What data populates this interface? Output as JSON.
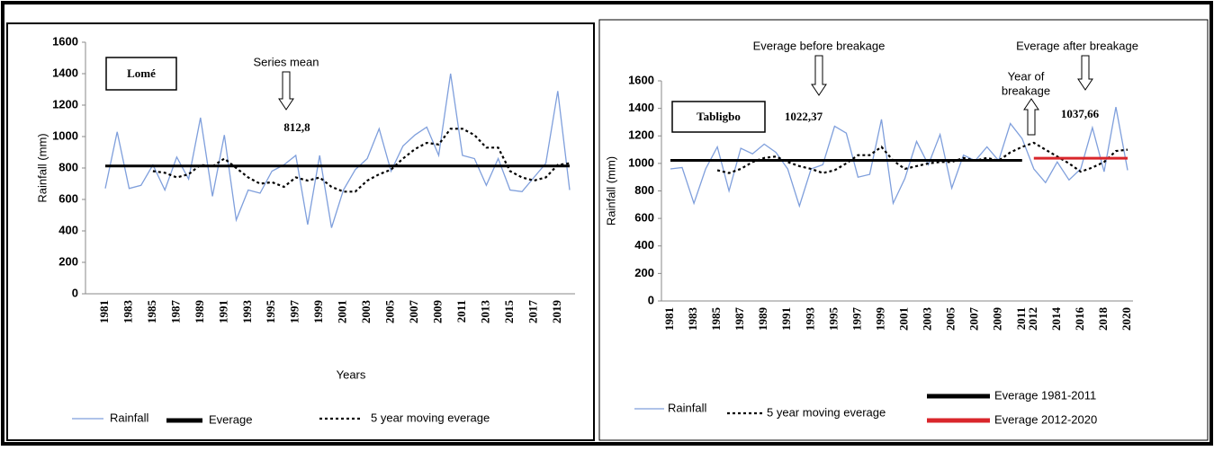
{
  "chart_data": [
    {
      "type": "line",
      "title": "Lomé",
      "x_label": "Years",
      "y_label": "Rainfall (mm)",
      "categories": [
        "1981",
        null,
        "1983",
        null,
        "1985",
        null,
        "1987",
        null,
        "1989",
        null,
        "1991",
        null,
        "1993",
        null,
        "1995",
        null,
        "1997",
        null,
        "1999",
        null,
        "2001",
        null,
        "2003",
        null,
        "2005",
        null,
        "2007",
        null,
        "2009",
        null,
        "2011",
        null,
        "2013",
        null,
        "2015",
        null,
        "2017",
        null,
        "2019",
        null
      ],
      "ylim": [
        0,
        1600
      ],
      "yticks": [
        0,
        200,
        400,
        600,
        800,
        1000,
        1200,
        1400,
        1600
      ],
      "series": [
        {
          "name": "Rainfall",
          "color": "#7f9fdc",
          "style": "solid",
          "values": [
            670,
            1030,
            670,
            690,
            820,
            660,
            870,
            730,
            1120,
            620,
            1010,
            470,
            660,
            640,
            780,
            820,
            880,
            440,
            880,
            420,
            660,
            790,
            860,
            1050,
            780,
            940,
            1010,
            1060,
            880,
            1400,
            880,
            860,
            690,
            860,
            660,
            650,
            740,
            830,
            1290,
            660
          ]
        },
        {
          "name": "Everage",
          "color": "#000000",
          "style": "hline",
          "value": 812.8,
          "value_label": "812,8",
          "start": "1981",
          "end": null
        },
        {
          "name": "5 year moving everage",
          "color": "#000000",
          "style": "dotted",
          "values": [
            null,
            null,
            null,
            null,
            780,
            770,
            740,
            760,
            820,
            810,
            860,
            800,
            740,
            700,
            710,
            680,
            740,
            720,
            740,
            680,
            650,
            650,
            720,
            760,
            790,
            860,
            920,
            960,
            950,
            1050,
            1050,
            1010,
            930,
            930,
            780,
            740,
            720,
            740,
            820,
            830
          ]
        }
      ],
      "annotations": [
        {
          "text": "Series mean"
        }
      ]
    },
    {
      "type": "line",
      "title": "Tabligbo",
      "y_label": "Rainfall (mm)",
      "categories": [
        "1981",
        null,
        "1983",
        null,
        "1985",
        null,
        "1987",
        null,
        "1989",
        null,
        "1991",
        null,
        "1993",
        null,
        "1995",
        null,
        "1997",
        null,
        "1999",
        null,
        "2001",
        null,
        "2003",
        null,
        "2005",
        null,
        "2007",
        null,
        "2009",
        null,
        "2011",
        "2012",
        null,
        "2014",
        null,
        "2016",
        null,
        "2018",
        null,
        "2020"
      ],
      "ylim": [
        0,
        1600
      ],
      "yticks": [
        0,
        200,
        400,
        600,
        800,
        1000,
        1200,
        1400,
        1600
      ],
      "series": [
        {
          "name": "Rainfall",
          "color": "#7f9fdc",
          "style": "solid",
          "values": [
            960,
            970,
            710,
            960,
            1120,
            800,
            1110,
            1070,
            1140,
            1080,
            960,
            690,
            960,
            990,
            1270,
            1220,
            900,
            920,
            1320,
            710,
            890,
            1160,
            990,
            1210,
            820,
            1060,
            1020,
            1120,
            1020,
            1290,
            1180,
            960,
            860,
            1010,
            880,
            960,
            1260,
            940,
            1410,
            950
          ]
        },
        {
          "name": "5 year moving everage",
          "color": "#000000",
          "style": "dotted",
          "values": [
            null,
            null,
            null,
            null,
            950,
            930,
            960,
            1010,
            1040,
            1050,
            1010,
            980,
            960,
            930,
            950,
            1000,
            1060,
            1060,
            1120,
            1020,
            960,
            980,
            1000,
            1010,
            1010,
            1040,
            1020,
            1040,
            1020,
            1080,
            1120,
            1150,
            1100,
            1050,
            1000,
            940,
            970,
            1010,
            1090,
            1100
          ]
        },
        {
          "name": "Everage 1981-2011",
          "color": "#000000",
          "style": "hline",
          "value": 1022.37,
          "value_label": "1022,37",
          "start": "1981",
          "end": "2011"
        },
        {
          "name": "Everage 2012-2020",
          "color": "#d9262b",
          "style": "hline",
          "value": 1037.66,
          "value_label": "1037,66",
          "start": "2012",
          "end": "2020"
        }
      ],
      "annotations": [
        {
          "text": "Everage before breakage"
        },
        {
          "text": "Everage after breakage"
        },
        {
          "text": [
            "Year of",
            "breakage"
          ]
        }
      ]
    }
  ]
}
